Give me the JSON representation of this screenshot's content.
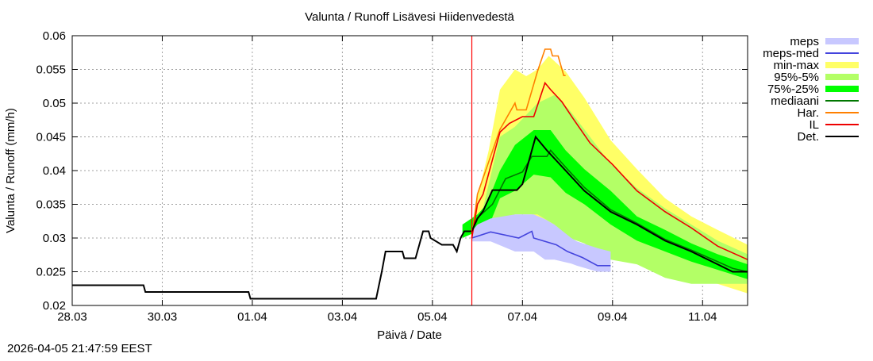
{
  "chart_data": {
    "type": "line",
    "title": "Valunta / Runoff  Lisävesi Hiidenvedestä",
    "xlabel": "Päivä / Date",
    "ylabel": "Valunta / Runoff (mm/h)",
    "xlim": [
      "2026-03-28T00:00",
      "2026-04-12T00:00"
    ],
    "ylim": [
      0.02,
      0.06
    ],
    "yticks": [
      0.02,
      0.025,
      0.03,
      0.035,
      0.04,
      0.045,
      0.05,
      0.055,
      0.06
    ],
    "ytick_labels": [
      "0.02",
      "0.025",
      "0.03",
      "0.035",
      "0.04",
      "0.045",
      "0.05",
      "0.055",
      "0.06"
    ],
    "xticks": [
      "2026-03-28T00:00",
      "2026-03-30T00:00",
      "2026-04-01T00:00",
      "2026-04-03T00:00",
      "2026-04-05T00:00",
      "2026-04-07T00:00",
      "2026-04-09T00:00",
      "2026-04-11T00:00"
    ],
    "xtick_labels": [
      "28.03",
      "30.03",
      "01.04",
      "03.04",
      "05.04",
      "07.04",
      "09.04",
      "11.04"
    ],
    "grid": true,
    "legend_position": "right-outside",
    "forecast_start": "2026-04-05T21:00",
    "forecast_line_color": "#ff0000",
    "bands": [
      {
        "name": "min-max",
        "color": "#ffff66",
        "points": [
          [
            "2026-04-05T21:00",
            0.03,
            0.032
          ],
          [
            "2026-04-06T00:00",
            0.03,
            0.036
          ],
          [
            "2026-04-06T06:00",
            0.031,
            0.043
          ],
          [
            "2026-04-06T12:00",
            0.0325,
            0.052
          ],
          [
            "2026-04-06T20:00",
            0.034,
            0.055
          ],
          [
            "2026-04-07T02:00",
            0.034,
            0.054
          ],
          [
            "2026-04-07T08:00",
            0.033,
            0.055
          ],
          [
            "2026-04-07T14:00",
            0.032,
            0.057
          ],
          [
            "2026-04-07T23:00",
            0.03,
            0.0547
          ],
          [
            "2026-04-08T09:00",
            0.0296,
            0.0508
          ],
          [
            "2026-04-08T23:00",
            0.028,
            0.0445
          ],
          [
            "2026-04-09T13:00",
            0.0261,
            0.0402
          ],
          [
            "2026-04-10T04:00",
            0.0249,
            0.0359
          ],
          [
            "2026-04-10T18:00",
            0.0238,
            0.0332
          ],
          [
            "2026-04-11T08:00",
            0.0232,
            0.0312
          ],
          [
            "2026-04-12T00:00",
            0.0218,
            0.029
          ]
        ]
      },
      {
        "name": "95%-5%",
        "color": "#b3ff66",
        "points": [
          [
            "2026-04-05T21:00",
            0.03,
            0.032
          ],
          [
            "2026-04-06T03:00",
            0.031,
            0.0345
          ],
          [
            "2026-04-06T12:00",
            0.0325,
            0.045
          ],
          [
            "2026-04-06T20:00",
            0.0335,
            0.0465
          ],
          [
            "2026-04-07T08:00",
            0.0335,
            0.05
          ],
          [
            "2026-04-07T17:00",
            0.032,
            0.0512
          ],
          [
            "2026-04-08T01:00",
            0.03,
            0.049
          ],
          [
            "2026-04-08T09:00",
            0.0292,
            0.0461
          ],
          [
            "2026-04-08T23:00",
            0.0268,
            0.041
          ],
          [
            "2026-04-09T13:00",
            0.0261,
            0.0374
          ],
          [
            "2026-04-10T04:00",
            0.0241,
            0.0344
          ],
          [
            "2026-04-10T18:00",
            0.0232,
            0.032
          ],
          [
            "2026-04-11T08:00",
            0.0232,
            0.0296
          ],
          [
            "2026-04-12T00:00",
            0.0232,
            0.0276
          ]
        ]
      },
      {
        "name": "75%-25%",
        "color": "#00ff00",
        "points": [
          [
            "2026-04-05T16:00",
            0.03,
            0.032
          ],
          [
            "2026-04-06T00:00",
            0.031,
            0.0335
          ],
          [
            "2026-04-06T05:00",
            0.031,
            0.035
          ],
          [
            "2026-04-06T12:00",
            0.0359,
            0.04
          ],
          [
            "2026-04-06T20:00",
            0.037,
            0.0438
          ],
          [
            "2026-04-07T06:00",
            0.0394,
            0.046
          ],
          [
            "2026-04-07T15:00",
            0.039,
            0.046
          ],
          [
            "2026-04-07T23:00",
            0.0367,
            0.043
          ],
          [
            "2026-04-08T09:00",
            0.035,
            0.0402
          ],
          [
            "2026-04-08T23:00",
            0.032,
            0.037
          ],
          [
            "2026-04-09T13:00",
            0.0296,
            0.0332
          ],
          [
            "2026-04-10T04:00",
            0.028,
            0.0312
          ],
          [
            "2026-04-10T18:00",
            0.0265,
            0.0292
          ],
          [
            "2026-04-11T08:00",
            0.0253,
            0.0276
          ],
          [
            "2026-04-12T00:00",
            0.0239,
            0.0261
          ]
        ]
      },
      {
        "name": "meps",
        "color": "#c8c8ff",
        "points": [
          [
            "2026-04-05T21:00",
            0.0295,
            0.031
          ],
          [
            "2026-04-06T00:00",
            0.0295,
            0.032
          ],
          [
            "2026-04-06T07:00",
            0.0295,
            0.0329
          ],
          [
            "2026-04-06T20:00",
            0.028,
            0.0335
          ],
          [
            "2026-04-07T06:00",
            0.028,
            0.0335
          ],
          [
            "2026-04-07T12:00",
            0.0268,
            0.0328
          ],
          [
            "2026-04-07T17:00",
            0.0268,
            0.032
          ],
          [
            "2026-04-08T02:00",
            0.0262,
            0.03
          ],
          [
            "2026-04-08T05:00",
            0.0259,
            0.0295
          ],
          [
            "2026-04-08T16:00",
            0.025,
            0.0285
          ],
          [
            "2026-04-08T23:00",
            0.025,
            0.028
          ]
        ]
      }
    ],
    "series": [
      {
        "name": "meps-med",
        "color": "#4444dd",
        "points": [
          [
            "2026-04-05T21:00",
            0.03
          ],
          [
            "2026-04-06T07:00",
            0.0309
          ],
          [
            "2026-04-06T22:00",
            0.03
          ],
          [
            "2026-04-07T05:00",
            0.031
          ],
          [
            "2026-04-07T06:00",
            0.03
          ],
          [
            "2026-04-07T18:00",
            0.029
          ],
          [
            "2026-04-08T00:00",
            0.028
          ],
          [
            "2026-04-08T08:00",
            0.0271
          ],
          [
            "2026-04-08T16:00",
            0.0259
          ],
          [
            "2026-04-08T23:00",
            0.0259
          ]
        ]
      },
      {
        "name": "mediaani",
        "color": "#007700",
        "points": [
          [
            "2026-04-05T21:00",
            0.031
          ],
          [
            "2026-04-06T00:00",
            0.033
          ],
          [
            "2026-04-06T08:00",
            0.035
          ],
          [
            "2026-04-06T15:00",
            0.0388
          ],
          [
            "2026-04-07T00:00",
            0.0398
          ],
          [
            "2026-04-07T05:00",
            0.0421
          ],
          [
            "2026-04-07T13:00",
            0.0421
          ],
          [
            "2026-04-07T15:00",
            0.043
          ],
          [
            "2026-04-07T23:00",
            0.0405
          ],
          [
            "2026-04-08T09:00",
            0.0375
          ],
          [
            "2026-04-08T23:00",
            0.0342
          ],
          [
            "2026-04-09T13:00",
            0.0322
          ],
          [
            "2026-04-10T04:00",
            0.0298
          ],
          [
            "2026-04-10T18:00",
            0.0282
          ],
          [
            "2026-04-11T08:00",
            0.0265
          ],
          [
            "2026-04-11T16:00",
            0.0255
          ],
          [
            "2026-04-12T00:00",
            0.025
          ]
        ]
      },
      {
        "name": "Har.",
        "color": "#ff8000",
        "points": [
          [
            "2026-04-05T21:00",
            0.03
          ],
          [
            "2026-04-06T00:00",
            0.0365
          ],
          [
            "2026-04-06T12:00",
            0.0461
          ],
          [
            "2026-04-06T20:00",
            0.05
          ],
          [
            "2026-04-06T21:00",
            0.049
          ],
          [
            "2026-04-07T02:00",
            0.049
          ],
          [
            "2026-04-07T08:00",
            0.0547
          ],
          [
            "2026-04-07T12:00",
            0.058
          ],
          [
            "2026-04-07T15:00",
            0.058
          ],
          [
            "2026-04-07T16:00",
            0.057
          ],
          [
            "2026-04-07T19:00",
            0.057
          ],
          [
            "2026-04-07T22:00",
            0.0541
          ],
          [
            "2026-04-07T23:00",
            0.0541
          ]
        ]
      },
      {
        "name": "IL",
        "color": "#ee0000",
        "points": [
          [
            "2026-04-05T21:00",
            0.03
          ],
          [
            "2026-04-06T00:00",
            0.035
          ],
          [
            "2026-04-06T03:00",
            0.0365
          ],
          [
            "2026-04-06T12:00",
            0.0457
          ],
          [
            "2026-04-06T17:00",
            0.047
          ],
          [
            "2026-04-07T00:00",
            0.048
          ],
          [
            "2026-04-07T06:00",
            0.048
          ],
          [
            "2026-04-07T12:00",
            0.053
          ],
          [
            "2026-04-07T15:00",
            0.052
          ],
          [
            "2026-04-07T21:00",
            0.0502
          ],
          [
            "2026-04-08T03:00",
            0.0477
          ],
          [
            "2026-04-08T12:00",
            0.0441
          ],
          [
            "2026-04-09T00:00",
            0.0409
          ],
          [
            "2026-04-09T13:00",
            0.037
          ],
          [
            "2026-04-10T04:00",
            0.0339
          ],
          [
            "2026-04-10T18:00",
            0.0315
          ],
          [
            "2026-04-11T08:00",
            0.0288
          ],
          [
            "2026-04-12T00:00",
            0.0268
          ]
        ]
      },
      {
        "name": "Det.",
        "color": "#000000",
        "points": [
          [
            "2026-03-28T00:00",
            0.023
          ],
          [
            "2026-03-29T14:00",
            0.023
          ],
          [
            "2026-03-29T15:00",
            0.022
          ],
          [
            "2026-03-31T22:00",
            0.022
          ],
          [
            "2026-03-31T23:00",
            0.021
          ],
          [
            "2026-04-03T18:00",
            0.021
          ],
          [
            "2026-04-03T21:00",
            0.025
          ],
          [
            "2026-04-03T23:00",
            0.028
          ],
          [
            "2026-04-04T08:00",
            0.028
          ],
          [
            "2026-04-04T09:00",
            0.027
          ],
          [
            "2026-04-04T15:00",
            0.027
          ],
          [
            "2026-04-04T17:00",
            0.029
          ],
          [
            "2026-04-04T19:00",
            0.031
          ],
          [
            "2026-04-04T22:00",
            0.031
          ],
          [
            "2026-04-04T23:00",
            0.03
          ],
          [
            "2026-04-05T05:00",
            0.029
          ],
          [
            "2026-04-05T11:00",
            0.029
          ],
          [
            "2026-04-05T13:00",
            0.028
          ],
          [
            "2026-04-05T15:00",
            0.03
          ],
          [
            "2026-04-05T17:00",
            0.031
          ],
          [
            "2026-04-05T21:00",
            0.031
          ],
          [
            "2026-04-06T00:00",
            0.0329
          ],
          [
            "2026-04-06T03:00",
            0.034
          ],
          [
            "2026-04-06T08:00",
            0.0371
          ],
          [
            "2026-04-06T21:00",
            0.0371
          ],
          [
            "2026-04-07T00:00",
            0.038
          ],
          [
            "2026-04-07T07:00",
            0.045
          ],
          [
            "2026-04-07T10:00",
            0.044
          ],
          [
            "2026-04-07T13:00",
            0.043
          ],
          [
            "2026-04-07T23:00",
            0.04
          ],
          [
            "2026-04-08T09:00",
            0.037
          ],
          [
            "2026-04-08T23:00",
            0.0339
          ],
          [
            "2026-04-09T13:00",
            0.032
          ],
          [
            "2026-04-10T04:00",
            0.0296
          ],
          [
            "2026-04-10T18:00",
            0.028
          ],
          [
            "2026-04-11T08:00",
            0.0261
          ],
          [
            "2026-04-11T16:00",
            0.025
          ],
          [
            "2026-04-12T00:00",
            0.025
          ]
        ]
      }
    ],
    "legend": [
      {
        "label": "meps",
        "color": "#c8c8ff",
        "kind": "band"
      },
      {
        "label": "meps-med",
        "color": "#4444dd",
        "kind": "line"
      },
      {
        "label": "min-max",
        "color": "#ffff66",
        "kind": "band"
      },
      {
        "label": "95%-5%",
        "color": "#b3ff66",
        "kind": "band"
      },
      {
        "label": "75%-25%",
        "color": "#00ff00",
        "kind": "band"
      },
      {
        "label": "mediaani",
        "color": "#007700",
        "kind": "line"
      },
      {
        "label": "Har.",
        "color": "#ff8000",
        "kind": "line"
      },
      {
        "label": "IL",
        "color": "#ee0000",
        "kind": "line"
      },
      {
        "label": "Det.",
        "color": "#000000",
        "kind": "line"
      }
    ]
  },
  "timestamp": "2026-04-05 21:47:59 EEST"
}
